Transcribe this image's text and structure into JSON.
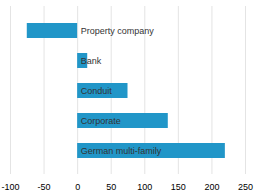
{
  "chart_data": {
    "type": "bar",
    "orientation": "horizontal",
    "categories": [
      "German multi-family",
      "Corporate",
      "Conduit",
      "Bank",
      "Property company"
    ],
    "values": [
      220,
      135,
      75,
      15,
      -75
    ],
    "color": "#2196c8",
    "xlim": [
      -100,
      250
    ],
    "xticks": [
      -100,
      -50,
      0,
      50,
      100,
      150,
      200,
      250
    ],
    "grid": true,
    "tick_labels": "x"
  }
}
